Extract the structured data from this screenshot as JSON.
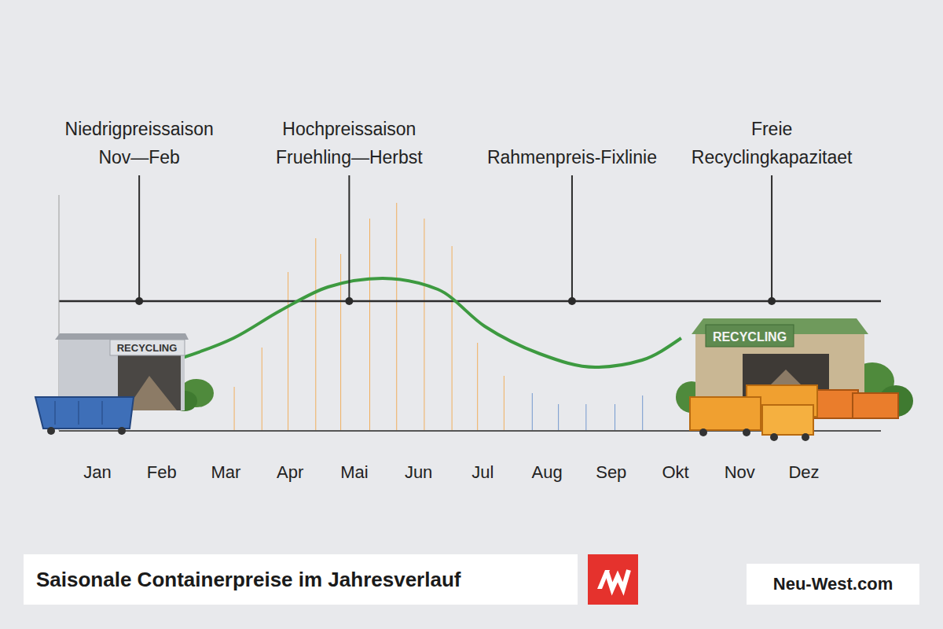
{
  "chart_data": {
    "type": "bar",
    "title": "Saisonale Containerpreise im Jahresverlauf",
    "source": "Neu-West.com",
    "xlim": [
      -0.6,
      12.2
    ],
    "xticks": [
      {
        "value": 0,
        "label": "Jan"
      },
      {
        "value": 1,
        "label": "Feb"
      },
      {
        "value": 2,
        "label": "Mar"
      },
      {
        "value": 3,
        "label": "Apr"
      },
      {
        "value": 4,
        "label": "Mai"
      },
      {
        "value": 5,
        "label": "Jun"
      },
      {
        "value": 6,
        "label": "Jul"
      },
      {
        "value": 7,
        "label": "Aug"
      },
      {
        "value": 8,
        "label": "Sep"
      },
      {
        "value": 9,
        "label": "Okt"
      },
      {
        "value": 10,
        "label": "Nov"
      },
      {
        "value": 11,
        "label": "Dez"
      }
    ],
    "ylim": [
      0,
      300
    ],
    "yticks": [],
    "tick_labels": "x",
    "grid": false,
    "series": [
      {
        "type": "bar",
        "x": [
          2.13,
          2.56,
          2.97,
          3.4,
          3.79,
          4.24,
          4.66,
          5.09,
          5.52,
          5.92,
          6.33,
          6.77,
          7.18,
          7.61,
          8.06,
          8.49
        ],
        "values": [
          56,
          106,
          202,
          245,
          225,
          270,
          290,
          270,
          235,
          112,
          70,
          48,
          34,
          34,
          34,
          45
        ],
        "colors": [
          "#f39a2c",
          "#f39a2c",
          "#f39a2c",
          "#f39a2c",
          "#f39a2c",
          "#f39a2c",
          "#f39a2c",
          "#f39a2c",
          "#f39a2c",
          "#f39a2c",
          "#f39a2c",
          "#4a7cc4",
          "#4a7cc4",
          "#4a7cc4",
          "#4a7cc4",
          "#4a7cc4"
        ]
      },
      {
        "type": "line",
        "x": [
          1.32,
          2.12,
          2.85,
          3.59,
          4.44,
          5.3,
          6.03,
          6.89,
          7.75,
          8.48,
          9.09
        ],
        "values": [
          93,
          118,
          153,
          183,
          194,
          180,
          133,
          98,
          81,
          90,
          118
        ],
        "color": "#3d9a40",
        "line_style": "solid"
      }
    ],
    "reference_line": {
      "y": 165,
      "color": "#2b2b2b"
    },
    "annotations": [
      {
        "lines": [
          "Niedrigpreissaison",
          "Nov—Feb"
        ],
        "x": 0.65
      },
      {
        "lines": [
          "Hochpreissaison",
          "Fruehling—Herbst"
        ],
        "x": 3.92
      },
      {
        "lines": [
          "Rahmenpreis-Fixlinie"
        ],
        "x": 7.39
      },
      {
        "lines": [
          "Freie",
          "Recyclingkapazitaet"
        ],
        "x": 10.5
      }
    ],
    "illustrations": [
      {
        "label": "RECYCLING"
      },
      {
        "label": "RECYCLING"
      }
    ]
  }
}
